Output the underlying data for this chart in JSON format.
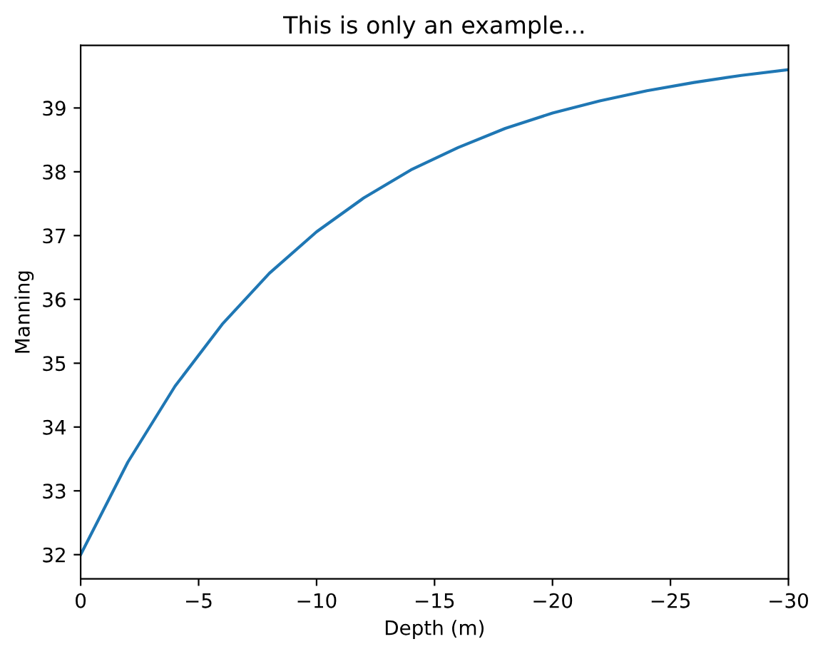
{
  "chart_data": {
    "type": "line",
    "title": "This is only an example...",
    "xlabel": "Depth (m)",
    "ylabel": "Manning",
    "x": [
      0,
      -2,
      -4,
      -6,
      -8,
      -10,
      -12,
      -14,
      -16,
      -18,
      -20,
      -22,
      -24,
      -26,
      -28,
      -30
    ],
    "series": [
      {
        "color": "#1f77b4",
        "values": [
          32.0,
          33.45,
          34.64,
          35.61,
          36.41,
          37.06,
          37.59,
          38.03,
          38.38,
          38.68,
          38.92,
          39.11,
          39.27,
          39.4,
          39.51,
          39.6
        ]
      }
    ],
    "xlim": [
      0,
      -30
    ],
    "xticks": [
      0,
      {
        "value": -5,
        "label": "−5"
      },
      {
        "value": -10,
        "label": "−10"
      },
      {
        "value": -15,
        "label": "−15"
      },
      {
        "value": -20,
        "label": "−20"
      },
      {
        "value": -25,
        "label": "−25"
      },
      {
        "value": -30,
        "label": "−30"
      }
    ],
    "ylim": [
      31.62,
      39.98
    ],
    "yticks": [
      32,
      33,
      34,
      35,
      36,
      37,
      38,
      39
    ],
    "grid": false,
    "legend": false,
    "marker": "none",
    "line_style": "solid"
  }
}
